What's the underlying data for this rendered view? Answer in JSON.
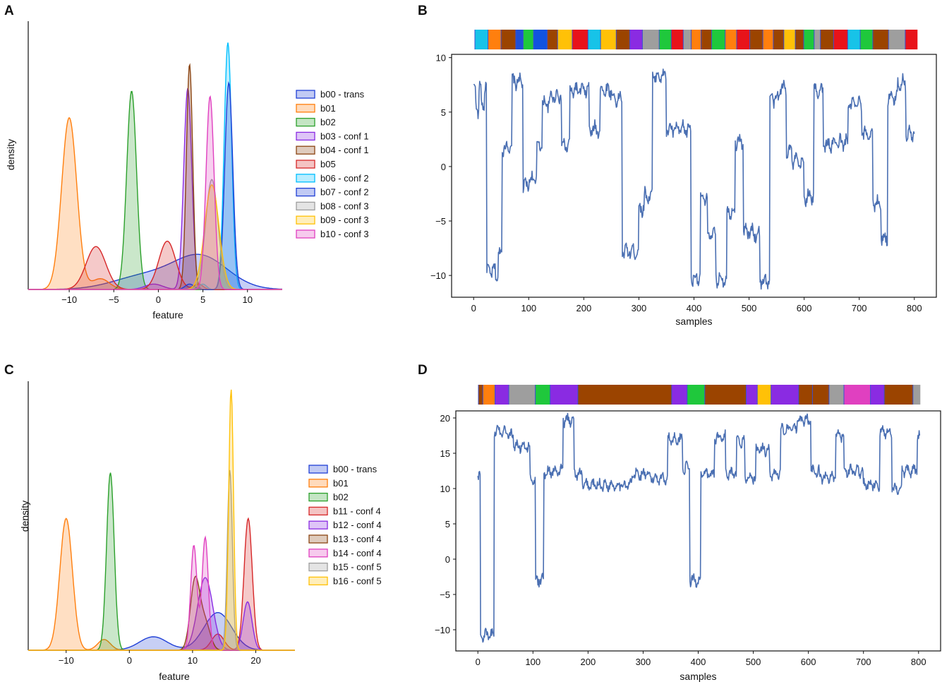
{
  "panels": {
    "a": {
      "label": "A"
    },
    "b": {
      "label": "B"
    },
    "c": {
      "label": "C"
    },
    "d": {
      "label": "D"
    }
  },
  "chart_data": [
    {
      "id": "A",
      "type": "area",
      "kind": "kde-density",
      "xlabel": "feature",
      "ylabel": "density",
      "xlim": [
        -14.6,
        13.9
      ],
      "ylim": [
        0,
        1.0
      ],
      "xticks": [
        -10,
        -5,
        0,
        5,
        10
      ],
      "xtick_labels": [
        "−10",
        "−5",
        "0",
        "5",
        "10"
      ],
      "legend_position": "right",
      "series": [
        {
          "name": "b00 - trans",
          "color": "#1f3fd6",
          "components": [
            [
              -1.5,
              0.05,
              3.5
            ],
            [
              4.8,
              0.12,
              3.0
            ]
          ]
        },
        {
          "name": "b01",
          "color": "#ff7f0e",
          "components": [
            [
              -10.0,
              0.64,
              0.85
            ],
            [
              -6.5,
              0.04,
              1.0
            ]
          ]
        },
        {
          "name": "b02",
          "color": "#2ca02c",
          "components": [
            [
              -3.0,
              0.74,
              0.55
            ]
          ]
        },
        {
          "name": "b03 - conf 1",
          "color": "#8a2be2",
          "components": [
            [
              3.3,
              0.75,
              0.45
            ],
            [
              -0.5,
              0.02,
              1.0
            ]
          ]
        },
        {
          "name": "b04 - conf 1",
          "color": "#8b4513",
          "components": [
            [
              3.5,
              0.84,
              0.35
            ]
          ]
        },
        {
          "name": "b05",
          "color": "#d62728",
          "components": [
            [
              -7.0,
              0.16,
              1.1
            ],
            [
              1.0,
              0.18,
              0.95
            ],
            [
              4.5,
              0.02,
              0.5
            ]
          ]
        },
        {
          "name": "b06 - conf 2",
          "color": "#00bfff",
          "components": [
            [
              7.8,
              0.92,
              0.42
            ],
            [
              5.0,
              0.02,
              0.4
            ]
          ]
        },
        {
          "name": "b07 - conf 2",
          "color": "#1f3fd6",
          "components": [
            [
              7.9,
              0.77,
              0.45
            ],
            [
              3.5,
              0.02,
              0.5
            ]
          ]
        },
        {
          "name": "b08 - conf 3",
          "color": "#9e9e9e",
          "components": [
            [
              6.0,
              0.41,
              0.7
            ]
          ]
        },
        {
          "name": "b09 - conf 3",
          "color": "#ffc107",
          "components": [
            [
              6.0,
              0.39,
              0.8
            ]
          ]
        },
        {
          "name": "b10 - conf 3",
          "color": "#e040c0",
          "components": [
            [
              5.8,
              0.72,
              0.45
            ]
          ]
        }
      ]
    },
    {
      "id": "B",
      "type": "line",
      "xlabel": "samples",
      "ylabel": "",
      "xlim": [
        -40,
        840
      ],
      "ylim": [
        -12,
        10.3
      ],
      "xticks": [
        0,
        100,
        200,
        300,
        400,
        500,
        600,
        700,
        800
      ],
      "yticks": [
        10,
        5,
        0,
        -5,
        -10
      ],
      "ytick_labels": [
        "10",
        "5",
        "0",
        "−5",
        "−10"
      ],
      "line_color": "#4a6fb2",
      "segments": [
        [
          0,
          4,
          7.3
        ],
        [
          4,
          10,
          5.2
        ],
        [
          10,
          14,
          7.5
        ],
        [
          14,
          20,
          5.5
        ],
        [
          20,
          24,
          7.5
        ],
        [
          24,
          40,
          -9.6
        ],
        [
          40,
          45,
          -10.0
        ],
        [
          45,
          52,
          -8.0
        ],
        [
          52,
          70,
          1.8
        ],
        [
          70,
          90,
          7.8
        ],
        [
          90,
          100,
          -1.8
        ],
        [
          100,
          115,
          -1.2
        ],
        [
          115,
          125,
          2.0
        ],
        [
          125,
          140,
          5.8
        ],
        [
          140,
          160,
          6.5
        ],
        [
          160,
          175,
          1.9
        ],
        [
          175,
          210,
          7.0
        ],
        [
          210,
          230,
          3.4
        ],
        [
          230,
          252,
          7.0
        ],
        [
          252,
          270,
          6.2
        ],
        [
          270,
          290,
          -7.8
        ],
        [
          290,
          300,
          -7.8
        ],
        [
          300,
          310,
          -3.8
        ],
        [
          310,
          325,
          -2.7
        ],
        [
          325,
          350,
          8.3
        ],
        [
          350,
          378,
          3.4
        ],
        [
          378,
          395,
          3.4
        ],
        [
          395,
          412,
          -10.2
        ],
        [
          412,
          425,
          -3.0
        ],
        [
          425,
          440,
          -6.3
        ],
        [
          440,
          460,
          -10.3
        ],
        [
          460,
          475,
          -4.1
        ],
        [
          475,
          490,
          2.3
        ],
        [
          490,
          510,
          -6.0
        ],
        [
          510,
          520,
          -6.2
        ],
        [
          520,
          538,
          -10.5
        ],
        [
          538,
          555,
          6.2
        ],
        [
          555,
          568,
          7.2
        ],
        [
          568,
          578,
          1.5
        ],
        [
          578,
          590,
          0.5
        ],
        [
          590,
          600,
          0.2
        ],
        [
          600,
          618,
          -2.8
        ],
        [
          618,
          635,
          7.0
        ],
        [
          635,
          655,
          2.0
        ],
        [
          655,
          680,
          2.2
        ],
        [
          680,
          705,
          5.7
        ],
        [
          705,
          725,
          3.0
        ],
        [
          725,
          740,
          -3.4
        ],
        [
          740,
          752,
          -6.6
        ],
        [
          752,
          770,
          6.3
        ],
        [
          770,
          785,
          7.7
        ],
        [
          785,
          800,
          3.0
        ]
      ],
      "segments_format": "[x_start, x_end, level]",
      "color_strip": {
        "xlim": [
          0,
          800
        ],
        "blocks": [
          [
            0,
            25,
            "#17c3e8"
          ],
          [
            25,
            50,
            "#ff7f0e"
          ],
          [
            50,
            78,
            "#9b4400"
          ],
          [
            78,
            92,
            "#1f4fd6"
          ],
          [
            92,
            112,
            "#1fc83c"
          ],
          [
            112,
            138,
            "#1153e0"
          ],
          [
            138,
            158,
            "#9b4400"
          ],
          [
            158,
            186,
            "#ffc107"
          ],
          [
            186,
            216,
            "#e8131a"
          ],
          [
            216,
            240,
            "#17c3e8"
          ],
          [
            240,
            270,
            "#ffc107"
          ],
          [
            270,
            296,
            "#9b4400"
          ],
          [
            296,
            320,
            "#8a2be2"
          ],
          [
            320,
            352,
            "#9e9e9e"
          ],
          [
            352,
            375,
            "#1fc83c"
          ],
          [
            375,
            398,
            "#e8131a"
          ],
          [
            398,
            413,
            "#9e9e9e"
          ],
          [
            413,
            432,
            "#ff7f0e"
          ],
          [
            432,
            452,
            "#9b4400"
          ],
          [
            452,
            478,
            "#1fc83c"
          ],
          [
            478,
            500,
            "#ff7f0e"
          ],
          [
            500,
            525,
            "#e8131a"
          ],
          [
            525,
            550,
            "#9b4400"
          ],
          [
            550,
            570,
            "#ff7f0e"
          ],
          [
            570,
            590,
            "#9b4400"
          ],
          [
            590,
            612,
            "#ffc107"
          ],
          [
            612,
            628,
            "#9b4400"
          ],
          [
            628,
            648,
            "#1fc83c"
          ],
          [
            648,
            660,
            "#9e9e9e"
          ],
          [
            660,
            685,
            "#9b4400"
          ],
          [
            685,
            712,
            "#e8131a"
          ],
          [
            712,
            736,
            "#17c3e8"
          ],
          [
            736,
            760,
            "#1fc83c"
          ],
          [
            760,
            790,
            "#9b4400"
          ],
          [
            790,
            822,
            "#9e9e9e"
          ],
          [
            822,
            845,
            "#e8131a"
          ]
        ],
        "blocks_scale": 845
      }
    },
    {
      "id": "C",
      "type": "area",
      "kind": "kde-density",
      "xlabel": "feature",
      "ylabel": "density",
      "xlim": [
        -16.0,
        26.2
      ],
      "ylim": [
        0,
        1.0
      ],
      "xticks": [
        -10,
        0,
        10,
        20
      ],
      "xtick_labels": [
        "−10",
        "0",
        "10",
        "20"
      ],
      "legend_position": "right",
      "series": [
        {
          "name": "b00 - trans",
          "color": "#1f3fd6",
          "components": [
            [
              3.8,
              0.05,
              2.2
            ],
            [
              14.0,
              0.14,
              2.2
            ]
          ]
        },
        {
          "name": "b01",
          "color": "#ff7f0e",
          "components": [
            [
              -10.0,
              0.49,
              1.0
            ],
            [
              -4.0,
              0.04,
              1.0
            ]
          ]
        },
        {
          "name": "b02",
          "color": "#2ca02c",
          "components": [
            [
              -3.0,
              0.66,
              0.6
            ]
          ]
        },
        {
          "name": "b11 - conf 4",
          "color": "#d62728",
          "components": [
            [
              18.8,
              0.49,
              0.65
            ],
            [
              14.0,
              0.06,
              1.0
            ]
          ]
        },
        {
          "name": "b12 - conf 4",
          "color": "#8a2be2",
          "components": [
            [
              12.0,
              0.27,
              1.2
            ],
            [
              18.7,
              0.18,
              0.7
            ]
          ]
        },
        {
          "name": "b13 - conf 4",
          "color": "#8b4513",
          "components": [
            [
              10.4,
              0.26,
              0.75
            ],
            [
              12.0,
              0.1,
              0.8
            ]
          ]
        },
        {
          "name": "b14 - conf 4",
          "color": "#e040c0",
          "components": [
            [
              10.2,
              0.39,
              0.5
            ],
            [
              12.0,
              0.42,
              0.5
            ]
          ]
        },
        {
          "name": "b15 - conf 5",
          "color": "#9e9e9e",
          "components": [
            [
              15.9,
              0.67,
              0.4
            ]
          ]
        },
        {
          "name": "b16 - conf 5",
          "color": "#ffc107",
          "components": [
            [
              16.1,
              0.97,
              0.38
            ]
          ]
        }
      ]
    },
    {
      "id": "D",
      "type": "line",
      "xlabel": "samples",
      "ylabel": "",
      "xlim": [
        -40,
        840
      ],
      "ylim": [
        -13,
        21
      ],
      "xticks": [
        0,
        100,
        200,
        300,
        400,
        500,
        600,
        700,
        800
      ],
      "yticks": [
        20,
        15,
        10,
        5,
        0,
        -5,
        -10
      ],
      "ytick_labels": [
        "20",
        "15",
        "10",
        "5",
        "0",
        "−5",
        "−10"
      ],
      "line_color": "#4a6fb2",
      "segments": [
        [
          0,
          5,
          11.5
        ],
        [
          5,
          30,
          -10.8
        ],
        [
          30,
          55,
          18.2
        ],
        [
          55,
          65,
          17.5
        ],
        [
          65,
          95,
          16.0
        ],
        [
          95,
          105,
          11.0
        ],
        [
          105,
          120,
          -3.0
        ],
        [
          120,
          155,
          12.4
        ],
        [
          155,
          175,
          19.7
        ],
        [
          175,
          190,
          12.0
        ],
        [
          190,
          280,
          10.5
        ],
        [
          280,
          310,
          12.0
        ],
        [
          310,
          345,
          11.5
        ],
        [
          345,
          372,
          17.0
        ],
        [
          372,
          385,
          13.0
        ],
        [
          385,
          405,
          -3.0
        ],
        [
          405,
          430,
          12.0
        ],
        [
          430,
          450,
          17.3
        ],
        [
          450,
          470,
          12.0
        ],
        [
          470,
          485,
          16.6
        ],
        [
          485,
          505,
          11.5
        ],
        [
          505,
          530,
          15.5
        ],
        [
          530,
          550,
          12.0
        ],
        [
          550,
          580,
          18.5
        ],
        [
          580,
          605,
          19.6
        ],
        [
          605,
          620,
          12.5
        ],
        [
          620,
          650,
          11.5
        ],
        [
          650,
          665,
          17.5
        ],
        [
          665,
          700,
          12.5
        ],
        [
          700,
          730,
          10.5
        ],
        [
          730,
          752,
          18.0
        ],
        [
          752,
          770,
          10.0
        ],
        [
          770,
          798,
          12.5
        ],
        [
          798,
          802,
          17.5
        ]
      ],
      "segments_format": "[x_start, x_end, level]",
      "color_strip": {
        "xlim": [
          0,
          800
        ],
        "blocks": [
          [
            0,
            8,
            "#9b4400"
          ],
          [
            8,
            30,
            "#ff7f0e"
          ],
          [
            30,
            55,
            "#8a2be2"
          ],
          [
            55,
            103,
            "#9e9e9e"
          ],
          [
            103,
            130,
            "#1fc83c"
          ],
          [
            130,
            180,
            "#8a2be2"
          ],
          [
            180,
            350,
            "#9b4400"
          ],
          [
            350,
            378,
            "#8a2be2"
          ],
          [
            378,
            410,
            "#1fc83c"
          ],
          [
            410,
            485,
            "#9b4400"
          ],
          [
            485,
            505,
            "#8a2be2"
          ],
          [
            505,
            530,
            "#ffc107"
          ],
          [
            530,
            580,
            "#8a2be2"
          ],
          [
            580,
            605,
            "#9b4400"
          ],
          [
            605,
            635,
            "#9b4400"
          ],
          [
            635,
            662,
            "#9e9e9e"
          ],
          [
            662,
            710,
            "#e040c0"
          ],
          [
            710,
            735,
            "#8a2be2"
          ],
          [
            735,
            787,
            "#9b4400"
          ],
          [
            787,
            800,
            "#9e9e9e"
          ]
        ],
        "blocks_scale": 800
      }
    }
  ]
}
